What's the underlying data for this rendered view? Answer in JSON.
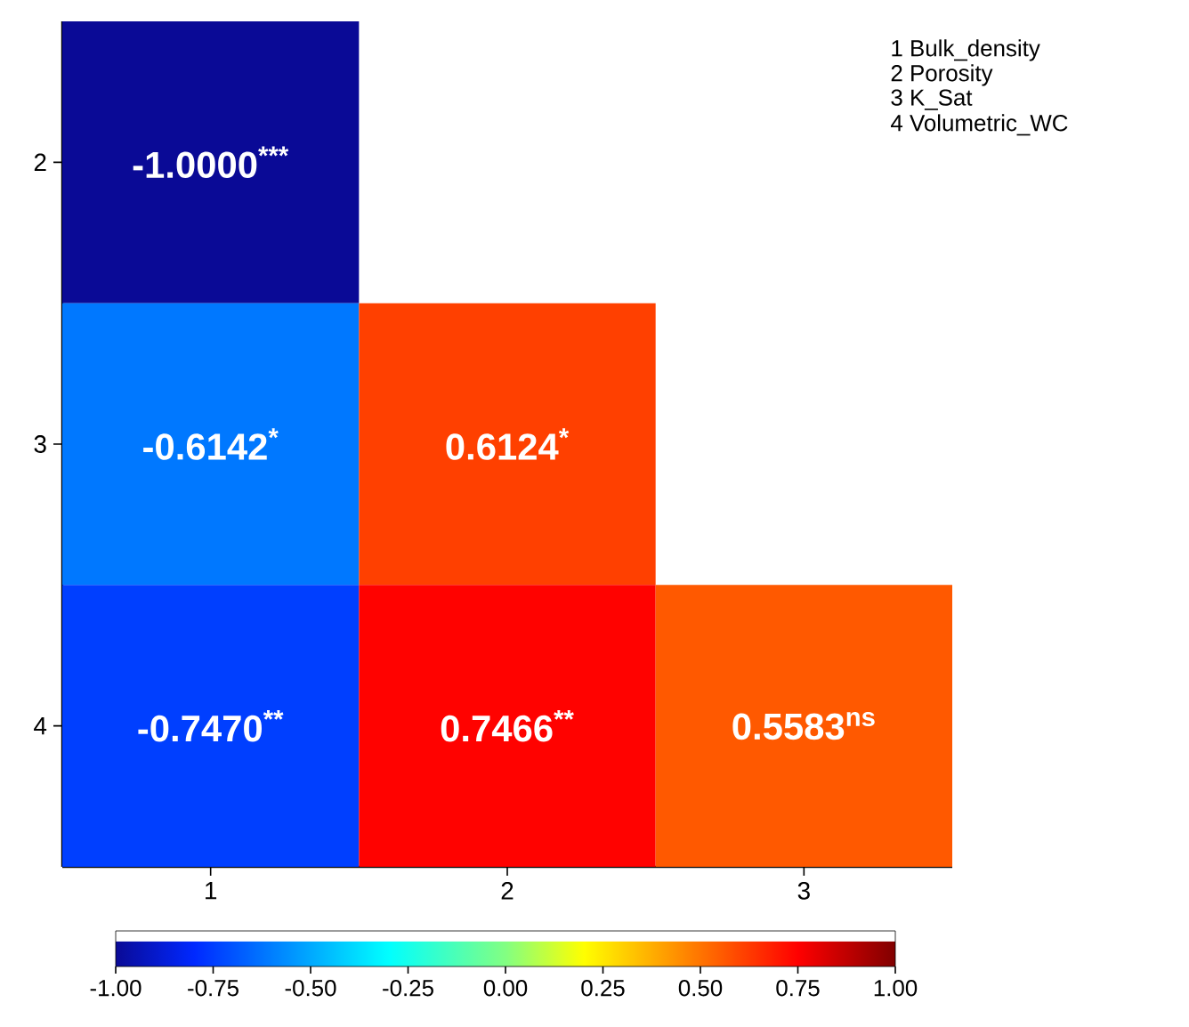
{
  "chart_data": {
    "type": "heatmap",
    "categories": [
      "1",
      "2",
      "3"
    ],
    "y_categories": [
      "2",
      "3",
      "4"
    ],
    "cells": [
      [
        -1.0,
        null,
        null
      ],
      [
        -0.6142,
        0.6124,
        null
      ],
      [
        -0.747,
        0.7466,
        0.5583
      ]
    ],
    "cell_labels": [
      [
        "-1.0000$^{***}$",
        null,
        null
      ],
      [
        "-0.6142$^{*}$",
        "0.6124$^{*}$",
        null
      ],
      [
        "-0.7470$^{**}$",
        "0.7466$^{**}$",
        "0.5583$^{ns}$"
      ]
    ],
    "clim": [
      -1,
      1
    ],
    "cticks": [
      {
        "value": -1,
        "label": "-1.00"
      },
      {
        "value": -0.75,
        "label": "-0.75"
      },
      {
        "value": -0.5,
        "label": "-0.50"
      },
      {
        "value": -0.25,
        "label": "-0.25"
      },
      {
        "value": 0,
        "label": "0.00"
      },
      {
        "value": 0.25,
        "label": "0.25"
      },
      {
        "value": 0.5,
        "label": "0.50"
      },
      {
        "value": 0.75,
        "label": "0.75"
      },
      {
        "value": 1,
        "label": "1.00"
      }
    ],
    "annotations": [
      "1 Bulk_density",
      "2 Porosity",
      "3 K_Sat",
      "4 Volumetric_WC"
    ]
  }
}
